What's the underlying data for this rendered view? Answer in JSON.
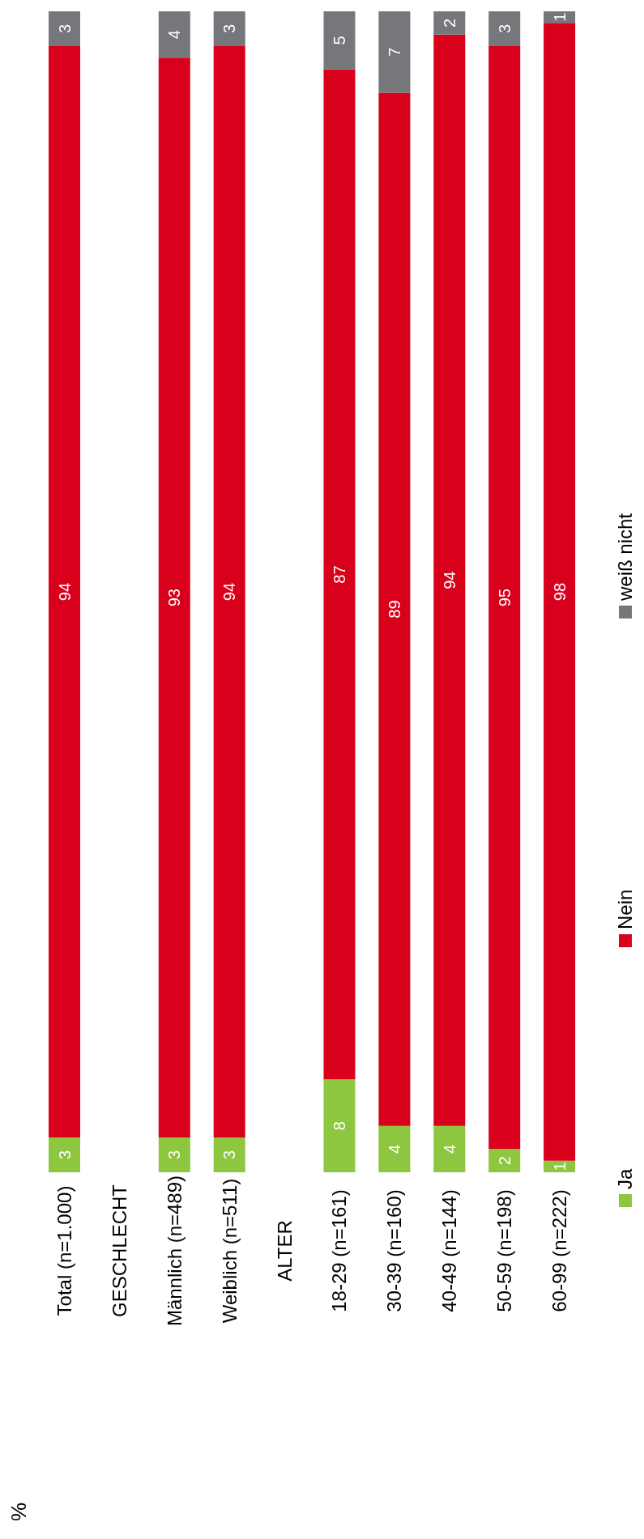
{
  "chart_data": {
    "type": "bar",
    "stacked": true,
    "annotations": [
      "%"
    ],
    "categories": [
      "Total (n=1.000)",
      "GESCHLECHT",
      "Männlich (n=489)",
      "Weiblich (n=511)",
      "ALTER",
      "18-29 (n=161)",
      "30-39 (n=160)",
      "40-49 (n=144)",
      "50-59 (n=198)",
      "60-99 (n=222)"
    ],
    "series": [
      {
        "name": "Ja",
        "color": "#8dc63f",
        "values": [
          3,
          null,
          3,
          3,
          null,
          8,
          4,
          4,
          2,
          1
        ]
      },
      {
        "name": "Nein",
        "color": "#d9001b",
        "values": [
          94,
          null,
          93,
          94,
          null,
          87,
          89,
          94,
          95,
          98
        ]
      },
      {
        "name": "weiß nicht",
        "color": "#76777b",
        "values": [
          3,
          null,
          4,
          3,
          null,
          5,
          7,
          2,
          3,
          1
        ]
      }
    ],
    "data_labels": true,
    "legend": "bottom",
    "grid": false
  }
}
